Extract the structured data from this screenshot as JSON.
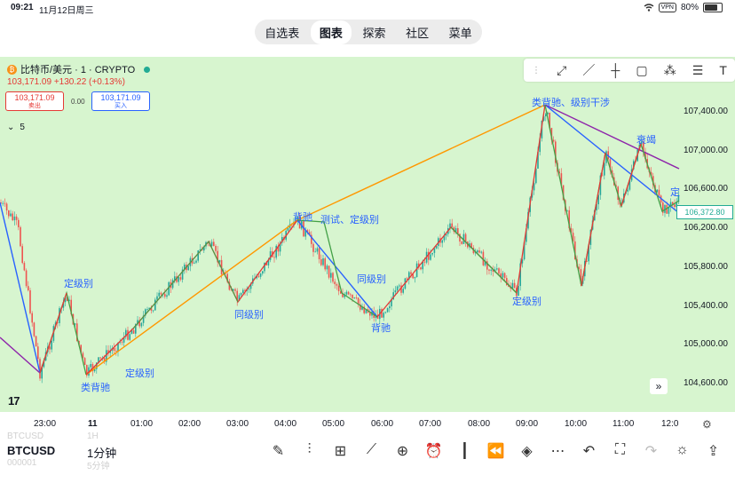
{
  "status_bar": {
    "time": "09:21",
    "date": "11月12日周三",
    "vpn": "VPN",
    "battery": "80%"
  },
  "nav_tabs": [
    {
      "label": "自选表",
      "active": false
    },
    {
      "label": "图表",
      "active": true
    },
    {
      "label": "探索",
      "active": false
    },
    {
      "label": "社区",
      "active": false
    },
    {
      "label": "菜单",
      "active": false
    }
  ],
  "symbol_header": {
    "title": "比特币/美元 · 1 · CRYPTO",
    "last": "103,171.09",
    "change": "+130.22 (+0.13%)"
  },
  "order_panel": {
    "sell_price": "103,171.09",
    "sell_label": "卖出",
    "spread": "0.00",
    "buy_price": "103,171.09",
    "buy_label": "买入"
  },
  "indicators_count": "5",
  "price_axis": [
    "107,400.00",
    "107,000.00",
    "106,600.00",
    "106,200.00",
    "105,800.00",
    "105,400.00",
    "105,000.00",
    "104,600.00"
  ],
  "current_price_tag": "106,372.80",
  "time_axis": [
    "23:00",
    "11",
    "01:00",
    "02:00",
    "03:00",
    "04:00",
    "05:00",
    "06:00",
    "07:00",
    "08:00",
    "09:00",
    "10:00",
    "11:00",
    "12:0"
  ],
  "annotations": [
    "定级别",
    "类背驰",
    "定级别",
    "同级别",
    "背驰",
    "测试、定级别",
    "同级别",
    "背驰",
    "定级别",
    "类背驰、级别干涉",
    "衰竭",
    "定"
  ],
  "bottom_bar": {
    "symbol": "BTCUSD",
    "interval": "1分钟",
    "ghost_symbol_top": "BTCUSD",
    "ghost_interval_top": "1H",
    "ghost_symbol_bottom": "000001",
    "ghost_interval_bottom": "5分钟"
  },
  "colors": {
    "chart_bg": "#d7f5cf",
    "up_candle": "#26a69a",
    "down_candle": "#ef5350",
    "bi_red": "#e53935",
    "bi_green": "#43a047",
    "segment_blue": "#2962ff",
    "segment_orange": "#ff9800",
    "segment_purple": "#8e24aa"
  },
  "icons": [
    "wifi-icon",
    "draw-line-icon",
    "trend-line-icon",
    "cursor-icon",
    "rectangle-icon",
    "node-icon",
    "fib-icon",
    "text-tool-icon",
    "pencil-icon",
    "indicators-icon",
    "layout-icon",
    "compare-icon",
    "add-icon",
    "alarm-icon",
    "candle-type-icon",
    "replay-icon",
    "layers-icon",
    "more-icon",
    "undo-icon",
    "fullscreen-icon",
    "redo-icon",
    "bulb-icon",
    "share-icon",
    "settings-icon",
    "scroll-right-icon"
  ]
}
